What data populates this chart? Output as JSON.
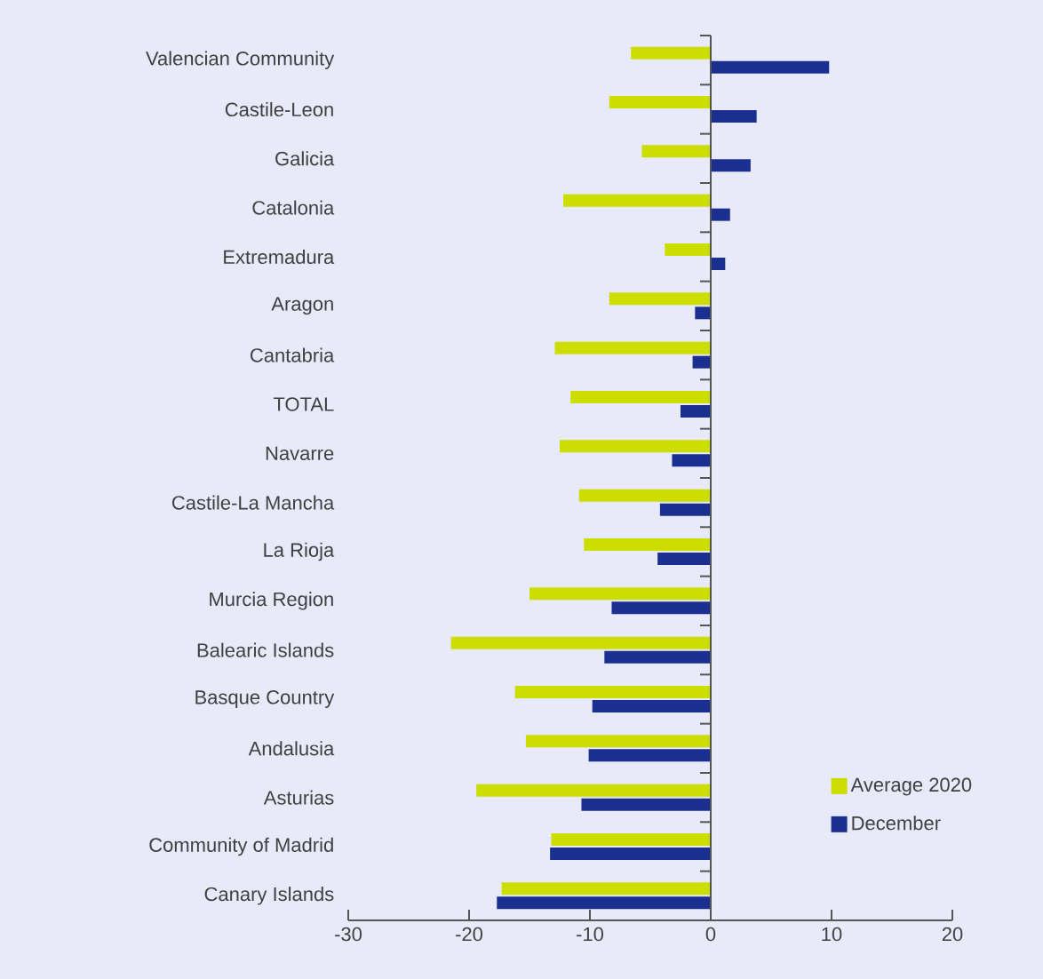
{
  "chart_data": {
    "type": "bar",
    "orientation": "horizontal",
    "categories": [
      "Valencian Community",
      "Castile-Leon",
      "Galicia",
      "Catalonia",
      "Extremadura",
      "Aragon",
      "Cantabria",
      "TOTAL",
      "Navarre",
      "Castile-La Mancha",
      "La Rioja",
      "Murcia Region",
      "Balearic Islands",
      "Basque Country",
      "Andalusia",
      "Asturias",
      "Community of Madrid",
      "Canary Islands"
    ],
    "series": [
      {
        "name": "Average 2020",
        "color": "#ccdd00",
        "values": [
          -6.6,
          -8.4,
          -5.7,
          -12.2,
          -3.8,
          -8.4,
          -12.9,
          -11.6,
          -12.5,
          -10.9,
          -10.5,
          -15.0,
          -21.5,
          -16.2,
          -15.3,
          -19.4,
          -13.2,
          -17.3
        ]
      },
      {
        "name": "December",
        "color": "#1a2f8f",
        "values": [
          9.8,
          3.8,
          3.3,
          1.6,
          1.2,
          -1.3,
          -1.5,
          -2.5,
          -3.2,
          -4.2,
          -4.4,
          -8.2,
          -8.8,
          -9.8,
          -10.1,
          -10.7,
          -13.3,
          -17.7
        ]
      }
    ],
    "xlim": [
      -30,
      20
    ],
    "xticks": [
      -30,
      -20,
      -10,
      0,
      10,
      20
    ],
    "legend": "bottom right"
  }
}
